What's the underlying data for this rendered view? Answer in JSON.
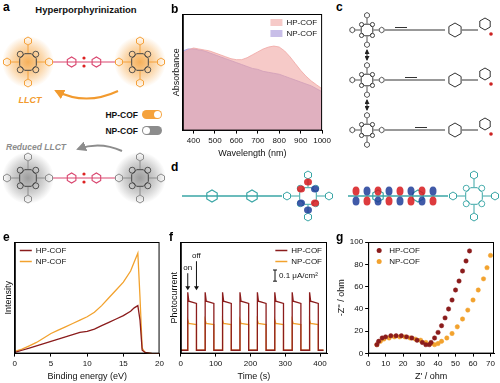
{
  "diagrams": [
    {
      "label": "a",
      "title": "Hyperporphyrinization",
      "arrows": [
        {
          "text": "LLCT",
          "color": "#f29a2e"
        },
        {
          "text": "Reduced LLCT",
          "color": "#8c8c8c"
        }
      ],
      "switches": [
        {
          "text": "HP-COF",
          "on": true,
          "color": "#f5a23c"
        },
        {
          "text": "NP-COF",
          "on": false,
          "color": "#8c8c8c"
        }
      ]
    },
    {
      "label": "c"
    },
    {
      "label": "d"
    }
  ],
  "chart_data": [
    {
      "panel": "b",
      "type": "area",
      "x_label": "Wavelength (nm)",
      "y_label": "Absorbance",
      "x": [
        350,
        375,
        400,
        425,
        450,
        475,
        500,
        525,
        550,
        575,
        600,
        625,
        650,
        675,
        700,
        725,
        750,
        775,
        800,
        825,
        850,
        875,
        900,
        925,
        950,
        975,
        1000
      ],
      "series": [
        {
          "name": "HP-COF",
          "color": "#f0a6a3",
          "values": [
            0.8,
            0.83,
            0.85,
            0.84,
            0.83,
            0.82,
            0.8,
            0.78,
            0.76,
            0.74,
            0.73,
            0.73,
            0.75,
            0.78,
            0.81,
            0.84,
            0.86,
            0.87,
            0.86,
            0.82,
            0.76,
            0.69,
            0.62,
            0.56,
            0.51,
            0.47,
            0.43
          ]
        },
        {
          "name": "NP-COF",
          "color": "#a393d8",
          "values": [
            0.82,
            0.84,
            0.84,
            0.83,
            0.82,
            0.8,
            0.78,
            0.76,
            0.74,
            0.72,
            0.7,
            0.68,
            0.66,
            0.64,
            0.63,
            0.61,
            0.6,
            0.59,
            0.58,
            0.56,
            0.54,
            0.52,
            0.5,
            0.48,
            0.46,
            0.43,
            0.4
          ]
        }
      ],
      "xlim": [
        350,
        1000
      ],
      "xticks": [
        400,
        500,
        600,
        700,
        800,
        900,
        1000
      ],
      "ylim": [
        0,
        1.2
      ],
      "tick_labels": "x",
      "grid": false,
      "legend": "top right"
    },
    {
      "panel": "e",
      "type": "line",
      "x_label": "Binding energy (eV)",
      "y_label": "Intensity",
      "x": [
        0,
        1,
        2,
        3,
        4,
        5,
        6,
        7,
        8,
        9,
        10,
        11,
        12,
        13,
        14,
        15,
        16,
        16.5,
        17,
        17.3,
        17.6,
        18,
        19,
        20
      ],
      "series": [
        {
          "name": "HP-COF",
          "color": "#8b1c1c",
          "values": [
            0.01,
            0.03,
            0.05,
            0.07,
            0.09,
            0.11,
            0.13,
            0.15,
            0.17,
            0.19,
            0.2,
            0.22,
            0.25,
            0.28,
            0.31,
            0.34,
            0.38,
            0.41,
            0.43,
            0.3,
            0.03,
            0.01,
            0,
            0
          ]
        },
        {
          "name": "NP-COF",
          "color": "#f2a22e",
          "values": [
            0.02,
            0.04,
            0.07,
            0.1,
            0.14,
            0.18,
            0.21,
            0.24,
            0.27,
            0.3,
            0.33,
            0.37,
            0.43,
            0.5,
            0.57,
            0.64,
            0.74,
            0.82,
            0.9,
            0.5,
            0.05,
            0.01,
            0,
            0
          ]
        }
      ],
      "xlim": [
        0,
        20
      ],
      "xticks": [
        0,
        5,
        10,
        15,
        20
      ],
      "ylim": [
        0,
        1
      ],
      "tick_labels": "x",
      "grid": false,
      "legend": "top left"
    },
    {
      "panel": "f",
      "type": "line",
      "x_label": "Time (s)",
      "y_label": "Photocurrent",
      "x": [
        0,
        20,
        20,
        23,
        45,
        45,
        70,
        70,
        73,
        95,
        95,
        120,
        120,
        123,
        145,
        145,
        170,
        170,
        173,
        195,
        195,
        220,
        220,
        223,
        245,
        245,
        270,
        270,
        273,
        295,
        295,
        320,
        320,
        323,
        345,
        345,
        370,
        370,
        373,
        395,
        395,
        410
      ],
      "series": [
        {
          "name": "HP-COF",
          "color": "#8b1c1c",
          "values": [
            0.03,
            0.03,
            0.55,
            0.47,
            0.45,
            0.03,
            0.03,
            0.55,
            0.47,
            0.45,
            0.03,
            0.03,
            0.55,
            0.47,
            0.45,
            0.03,
            0.03,
            0.55,
            0.47,
            0.45,
            0.03,
            0.03,
            0.55,
            0.47,
            0.45,
            0.03,
            0.03,
            0.55,
            0.47,
            0.45,
            0.03,
            0.03,
            0.55,
            0.47,
            0.45,
            0.03,
            0.03,
            0.55,
            0.47,
            0.45,
            0.03,
            0.03
          ]
        },
        {
          "name": "NP-COF",
          "color": "#f2a22e",
          "values": [
            0.03,
            0.03,
            0.3,
            0.27,
            0.26,
            0.03,
            0.03,
            0.3,
            0.27,
            0.26,
            0.03,
            0.03,
            0.3,
            0.27,
            0.26,
            0.03,
            0.03,
            0.3,
            0.27,
            0.26,
            0.03,
            0.03,
            0.3,
            0.27,
            0.26,
            0.03,
            0.03,
            0.3,
            0.27,
            0.26,
            0.03,
            0.03,
            0.3,
            0.27,
            0.26,
            0.03,
            0.03,
            0.3,
            0.27,
            0.26,
            0.03,
            0.03
          ]
        }
      ],
      "annotations": [
        {
          "text": "on",
          "x": 20
        },
        {
          "text": "off",
          "x": 45
        }
      ],
      "scale_bar": {
        "value": 0.1,
        "label": "0.1 μA/cm²"
      },
      "xlim": [
        0,
        420
      ],
      "xticks": [
        0,
        100,
        200,
        300,
        400
      ],
      "ylim": [
        0,
        1
      ],
      "tick_labels": "x",
      "grid": false,
      "legend": "top right"
    },
    {
      "panel": "g",
      "type": "scatter",
      "marker": "circle",
      "x_label": "Z' / ohm",
      "y_label": "-Z'' / ohm",
      "series": [
        {
          "name": "HP-COF",
          "color": "#8b1c1c",
          "x": [
            5,
            6,
            8,
            10,
            13,
            16,
            19,
            22,
            25,
            28,
            31,
            33,
            35,
            36,
            38,
            40,
            42,
            44,
            46,
            48,
            50,
            52,
            54,
            56,
            58
          ],
          "values": [
            8,
            11,
            14,
            15,
            16,
            16,
            16,
            15,
            14,
            12,
            10,
            8,
            8,
            10,
            14,
            19,
            25,
            32,
            40,
            48,
            57,
            65,
            74,
            83,
            92
          ]
        },
        {
          "name": "NP-COF",
          "color": "#f2a22e",
          "x": [
            5,
            7,
            9,
            12,
            15,
            18,
            21,
            24,
            27,
            30,
            33,
            36,
            38,
            40,
            42,
            45,
            48,
            51,
            54,
            57,
            60,
            63,
            66,
            68,
            70
          ],
          "values": [
            8,
            11,
            13,
            14,
            15,
            15,
            15,
            14,
            13,
            12,
            10,
            9,
            8,
            9,
            11,
            14,
            18,
            24,
            31,
            39,
            48,
            57,
            67,
            77,
            88
          ]
        }
      ],
      "xlim": [
        0,
        72
      ],
      "xticks": [
        0,
        10,
        20,
        30,
        40,
        50,
        60,
        70
      ],
      "ylim": [
        0,
        100
      ],
      "yticks": [
        0,
        20,
        40,
        60,
        80,
        100
      ],
      "grid": false,
      "legend": "top left"
    }
  ]
}
